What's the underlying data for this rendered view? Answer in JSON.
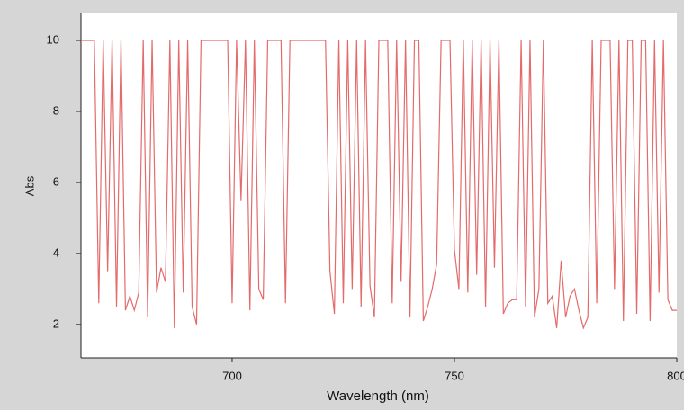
{
  "chart_data": {
    "type": "line",
    "x_label": "Wavelength (nm)",
    "y_label": "Abs",
    "x": [
      666,
      667,
      668,
      669,
      670,
      671,
      672,
      673,
      674,
      675,
      676,
      677,
      678,
      679,
      680,
      681,
      682,
      683,
      684,
      685,
      686,
      687,
      688,
      689,
      690,
      691,
      692,
      693,
      694,
      695,
      696,
      697,
      698,
      699,
      700,
      701,
      702,
      703,
      704,
      705,
      706,
      707,
      708,
      709,
      710,
      711,
      712,
      713,
      714,
      715,
      716,
      717,
      718,
      719,
      720,
      721,
      722,
      723,
      724,
      725,
      726,
      727,
      728,
      729,
      730,
      731,
      732,
      733,
      734,
      735,
      736,
      737,
      738,
      739,
      740,
      741,
      742,
      743,
      744,
      745,
      746,
      747,
      748,
      749,
      750,
      751,
      752,
      753,
      754,
      755,
      756,
      757,
      758,
      759,
      760,
      761,
      762,
      763,
      764,
      765,
      766,
      767,
      768,
      769,
      770,
      771,
      772,
      773,
      774,
      775,
      776,
      777,
      778,
      779,
      780,
      781,
      782,
      783,
      784,
      785,
      786,
      787,
      788,
      789,
      790,
      791,
      792,
      793,
      794,
      795,
      796,
      797,
      798,
      799,
      800
    ],
    "series": [
      {
        "color": "#e36b6b",
        "values": [
          10,
          10,
          10,
          10,
          2.6,
          10,
          3.5,
          10,
          2.5,
          10,
          2.4,
          2.8,
          2.4,
          2.9,
          10,
          2.2,
          10,
          2.9,
          3.6,
          3.2,
          10,
          1.9,
          10,
          2.9,
          10,
          2.5,
          2.0,
          10,
          10,
          10,
          10,
          10,
          10,
          10,
          2.6,
          10,
          5.5,
          10,
          2.4,
          10,
          3.0,
          2.7,
          10,
          10,
          10,
          10,
          2.6,
          10,
          10,
          10,
          10,
          10,
          10,
          10,
          10,
          10,
          3.5,
          2.3,
          10,
          2.6,
          10,
          3.0,
          10,
          2.5,
          10,
          3.1,
          2.2,
          10,
          10,
          10,
          2.6,
          10,
          3.2,
          10,
          2.2,
          10,
          10,
          2.1,
          2.5,
          3.0,
          3.7,
          10,
          10,
          10,
          4.1,
          3.0,
          10,
          2.9,
          10,
          3.4,
          10,
          2.5,
          10,
          3.6,
          10,
          2.3,
          2.6,
          2.7,
          2.7,
          10,
          2.5,
          10,
          2.2,
          3.0,
          10,
          2.6,
          2.8,
          1.9,
          3.8,
          2.2,
          2.8,
          3.0,
          2.4,
          1.9,
          2.2,
          10,
          2.6,
          10,
          10,
          10,
          3.0,
          10,
          2.1,
          10,
          10,
          2.3,
          10,
          10,
          2.1,
          10,
          2.9,
          10,
          2.7,
          2.4,
          2.4
        ]
      }
    ],
    "xlim": [
      666,
      800
    ],
    "ylim": [
      1.06,
      10.76
    ],
    "xticks": [
      700,
      750,
      800
    ],
    "yticks": [
      2,
      4,
      6,
      8,
      10
    ]
  }
}
